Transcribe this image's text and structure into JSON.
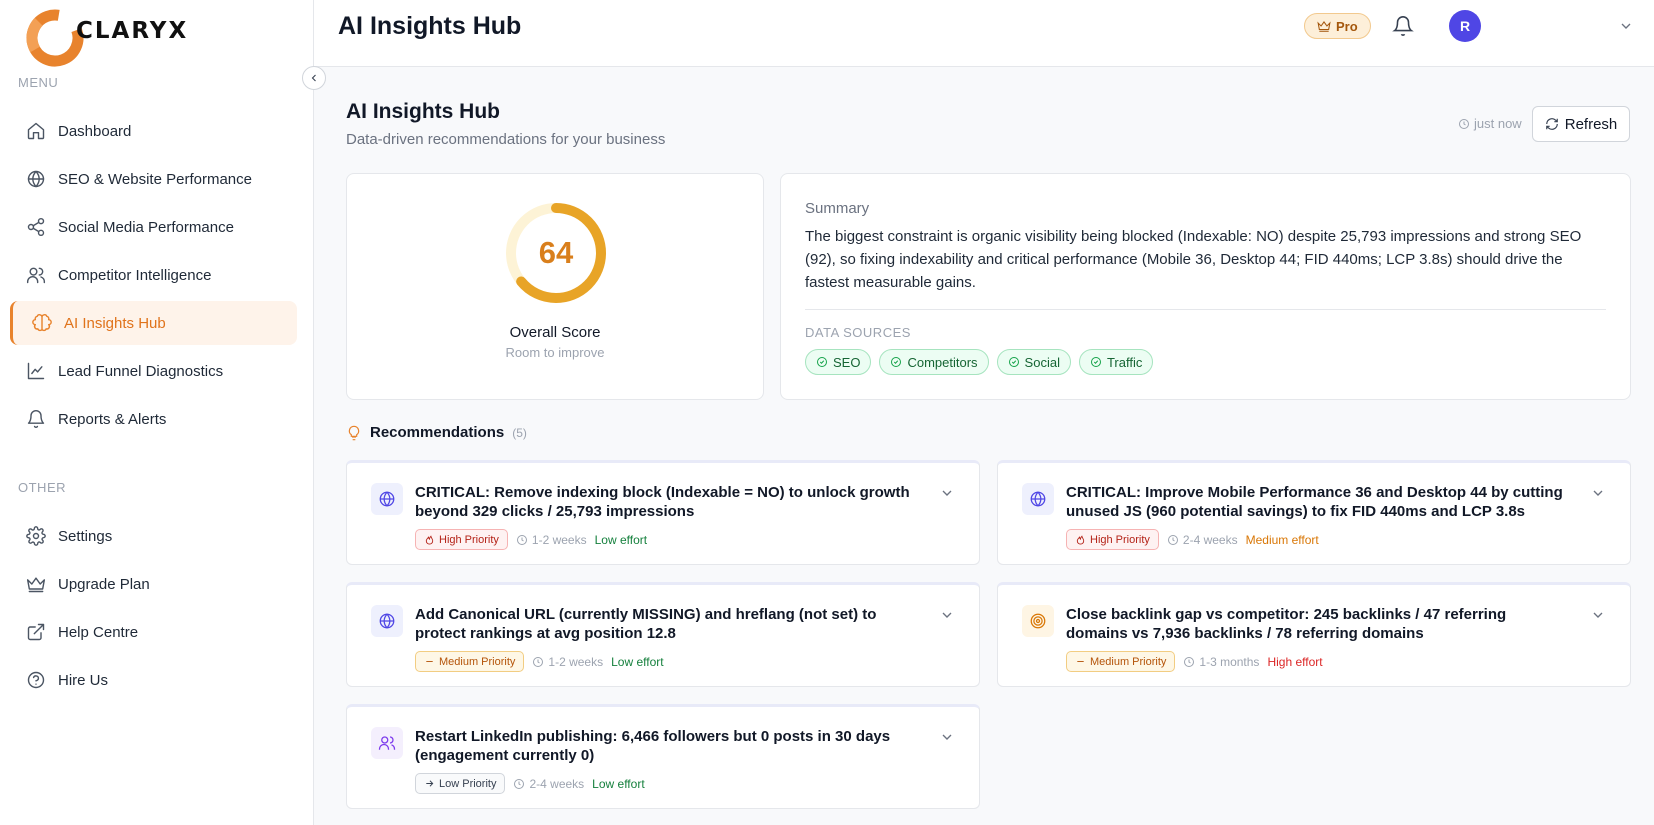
{
  "brand": {
    "name": "CLARYX"
  },
  "sidebar": {
    "menu_label": "MENU",
    "other_label": "OTHER",
    "items": [
      {
        "label": "Dashboard",
        "icon": "home-icon"
      },
      {
        "label": "SEO & Website Performance",
        "icon": "globe-icon"
      },
      {
        "label": "Social Media Performance",
        "icon": "share-icon"
      },
      {
        "label": "Competitor Intelligence",
        "icon": "users-icon"
      },
      {
        "label": "AI Insights Hub",
        "icon": "brain-icon",
        "active": true
      },
      {
        "label": "Lead Funnel Diagnostics",
        "icon": "line-chart-icon"
      },
      {
        "label": "Reports & Alerts",
        "icon": "bell-icon"
      }
    ],
    "other_items": [
      {
        "label": "Settings",
        "icon": "gear-icon"
      },
      {
        "label": "Upgrade Plan",
        "icon": "crown-icon"
      },
      {
        "label": "Help Centre",
        "icon": "external-link-icon"
      },
      {
        "label": "Hire Us",
        "icon": "help-circle-icon"
      }
    ]
  },
  "topbar": {
    "title": "AI Insights Hub",
    "plan_badge": "Pro",
    "avatar_initial": "R"
  },
  "page": {
    "title": "AI Insights Hub",
    "subtitle": "Data-driven recommendations for your business",
    "updated": "just now",
    "refresh_label": "Refresh"
  },
  "score": {
    "value": "64",
    "fraction": 0.64,
    "label": "Overall Score",
    "sublabel": "Room to improve",
    "color": "#e8a427"
  },
  "summary": {
    "label": "Summary",
    "text": "The biggest constraint is organic visibility being blocked (Indexable: NO) despite 25,793 impressions and strong SEO (92), so fixing indexability and critical performance (Mobile 36, Desktop 44; FID 440ms; LCP 3.8s) should drive the fastest measurable gains.",
    "sources_label": "DATA SOURCES",
    "sources": [
      "SEO",
      "Competitors",
      "Social",
      "Traffic"
    ]
  },
  "recommendations": {
    "title": "Recommendations",
    "count": "(5)",
    "items": [
      {
        "text": "CRITICAL: Remove indexing block (Indexable = NO) to unlock growth beyond 329 clicks / 25,793 impressions",
        "priority": "High Priority",
        "timeframe": "1-2 weeks",
        "effort": "Low effort"
      },
      {
        "text": "CRITICAL: Improve Mobile Performance 36 and Desktop 44 by cutting unused JS (960 potential savings) to fix FID 440ms and LCP 3.8s",
        "priority": "High Priority",
        "timeframe": "2-4 weeks",
        "effort": "Medium effort"
      },
      {
        "text": "Add Canonical URL (currently MISSING) and hreflang (not set) to protect rankings at avg position 12.8",
        "priority": "Medium Priority",
        "timeframe": "1-2 weeks",
        "effort": "Low effort"
      },
      {
        "text": "Close backlink gap vs competitor: 245 backlinks / 47 referring domains vs 7,936 backlinks / 78 referring domains",
        "priority": "Medium Priority",
        "timeframe": "1-3 months",
        "effort": "High effort"
      },
      {
        "text": "Restart LinkedIn publishing: 6,466 followers but 0 posts in 30 days (engagement currently 0)",
        "priority": "Low Priority",
        "timeframe": "2-4 weeks",
        "effort": "Low effort"
      }
    ]
  }
}
